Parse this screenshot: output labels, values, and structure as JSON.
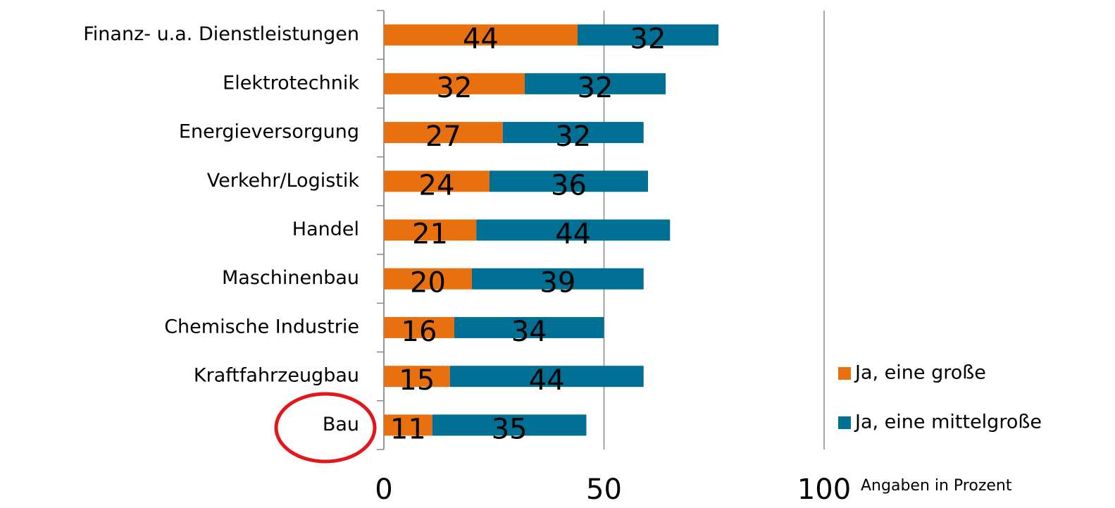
{
  "chart_data": {
    "type": "stacked_bar_horizontal",
    "categories": [
      "Finanz- u.a. Dienstleistungen",
      "Elektrotechnik",
      "Energieversorgung",
      "Verkehr/Logistik",
      "Handel",
      "Maschinenbau",
      "Chemische Industrie",
      "Kraftfahrzeugbau",
      "Bau"
    ],
    "series": [
      {
        "name": "Ja, eine große",
        "color": "#e8700e",
        "values": [
          44,
          32,
          27,
          24,
          21,
          20,
          16,
          15,
          11
        ]
      },
      {
        "name": "Ja, eine mittelgroße",
        "color": "#006f94",
        "values": [
          32,
          32,
          32,
          36,
          44,
          39,
          34,
          44,
          35
        ]
      }
    ],
    "xlim": [
      0,
      100
    ],
    "xticks": [
      0,
      50,
      100
    ],
    "grid": true,
    "legend": "right",
    "annotation": "Angaben in Prozent"
  }
}
